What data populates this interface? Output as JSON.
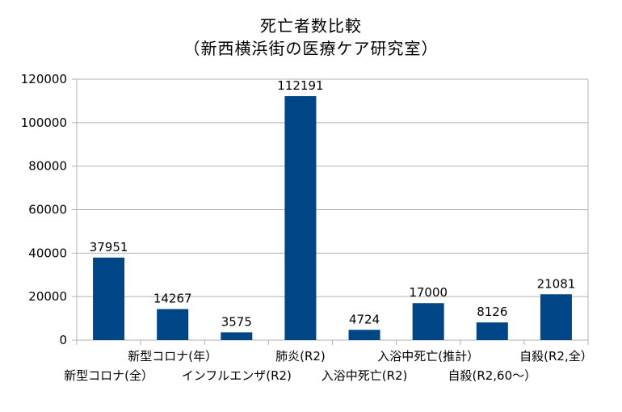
{
  "chart_data": {
    "type": "bar",
    "title": "死亡者数比較",
    "subtitle": "（新西横浜街の医療ケア研究室）",
    "categories": [
      "新型コロナ(全）",
      "新型コロナ(年）",
      "インフルエンザ(R2)",
      "肺炎(R2)",
      "入浴中死亡(R2)",
      "入浴中死亡(推計）",
      "自殺(R2,60～）",
      "自殺(R2,全）"
    ],
    "values": [
      37951,
      14267,
      3575,
      112191,
      4724,
      17000,
      8126,
      21081
    ],
    "ylim": [
      0,
      120000
    ],
    "yticks": [
      0,
      20000,
      40000,
      60000,
      80000,
      100000,
      120000
    ],
    "grid": true,
    "legend": "none",
    "bar_color": "#004586"
  }
}
